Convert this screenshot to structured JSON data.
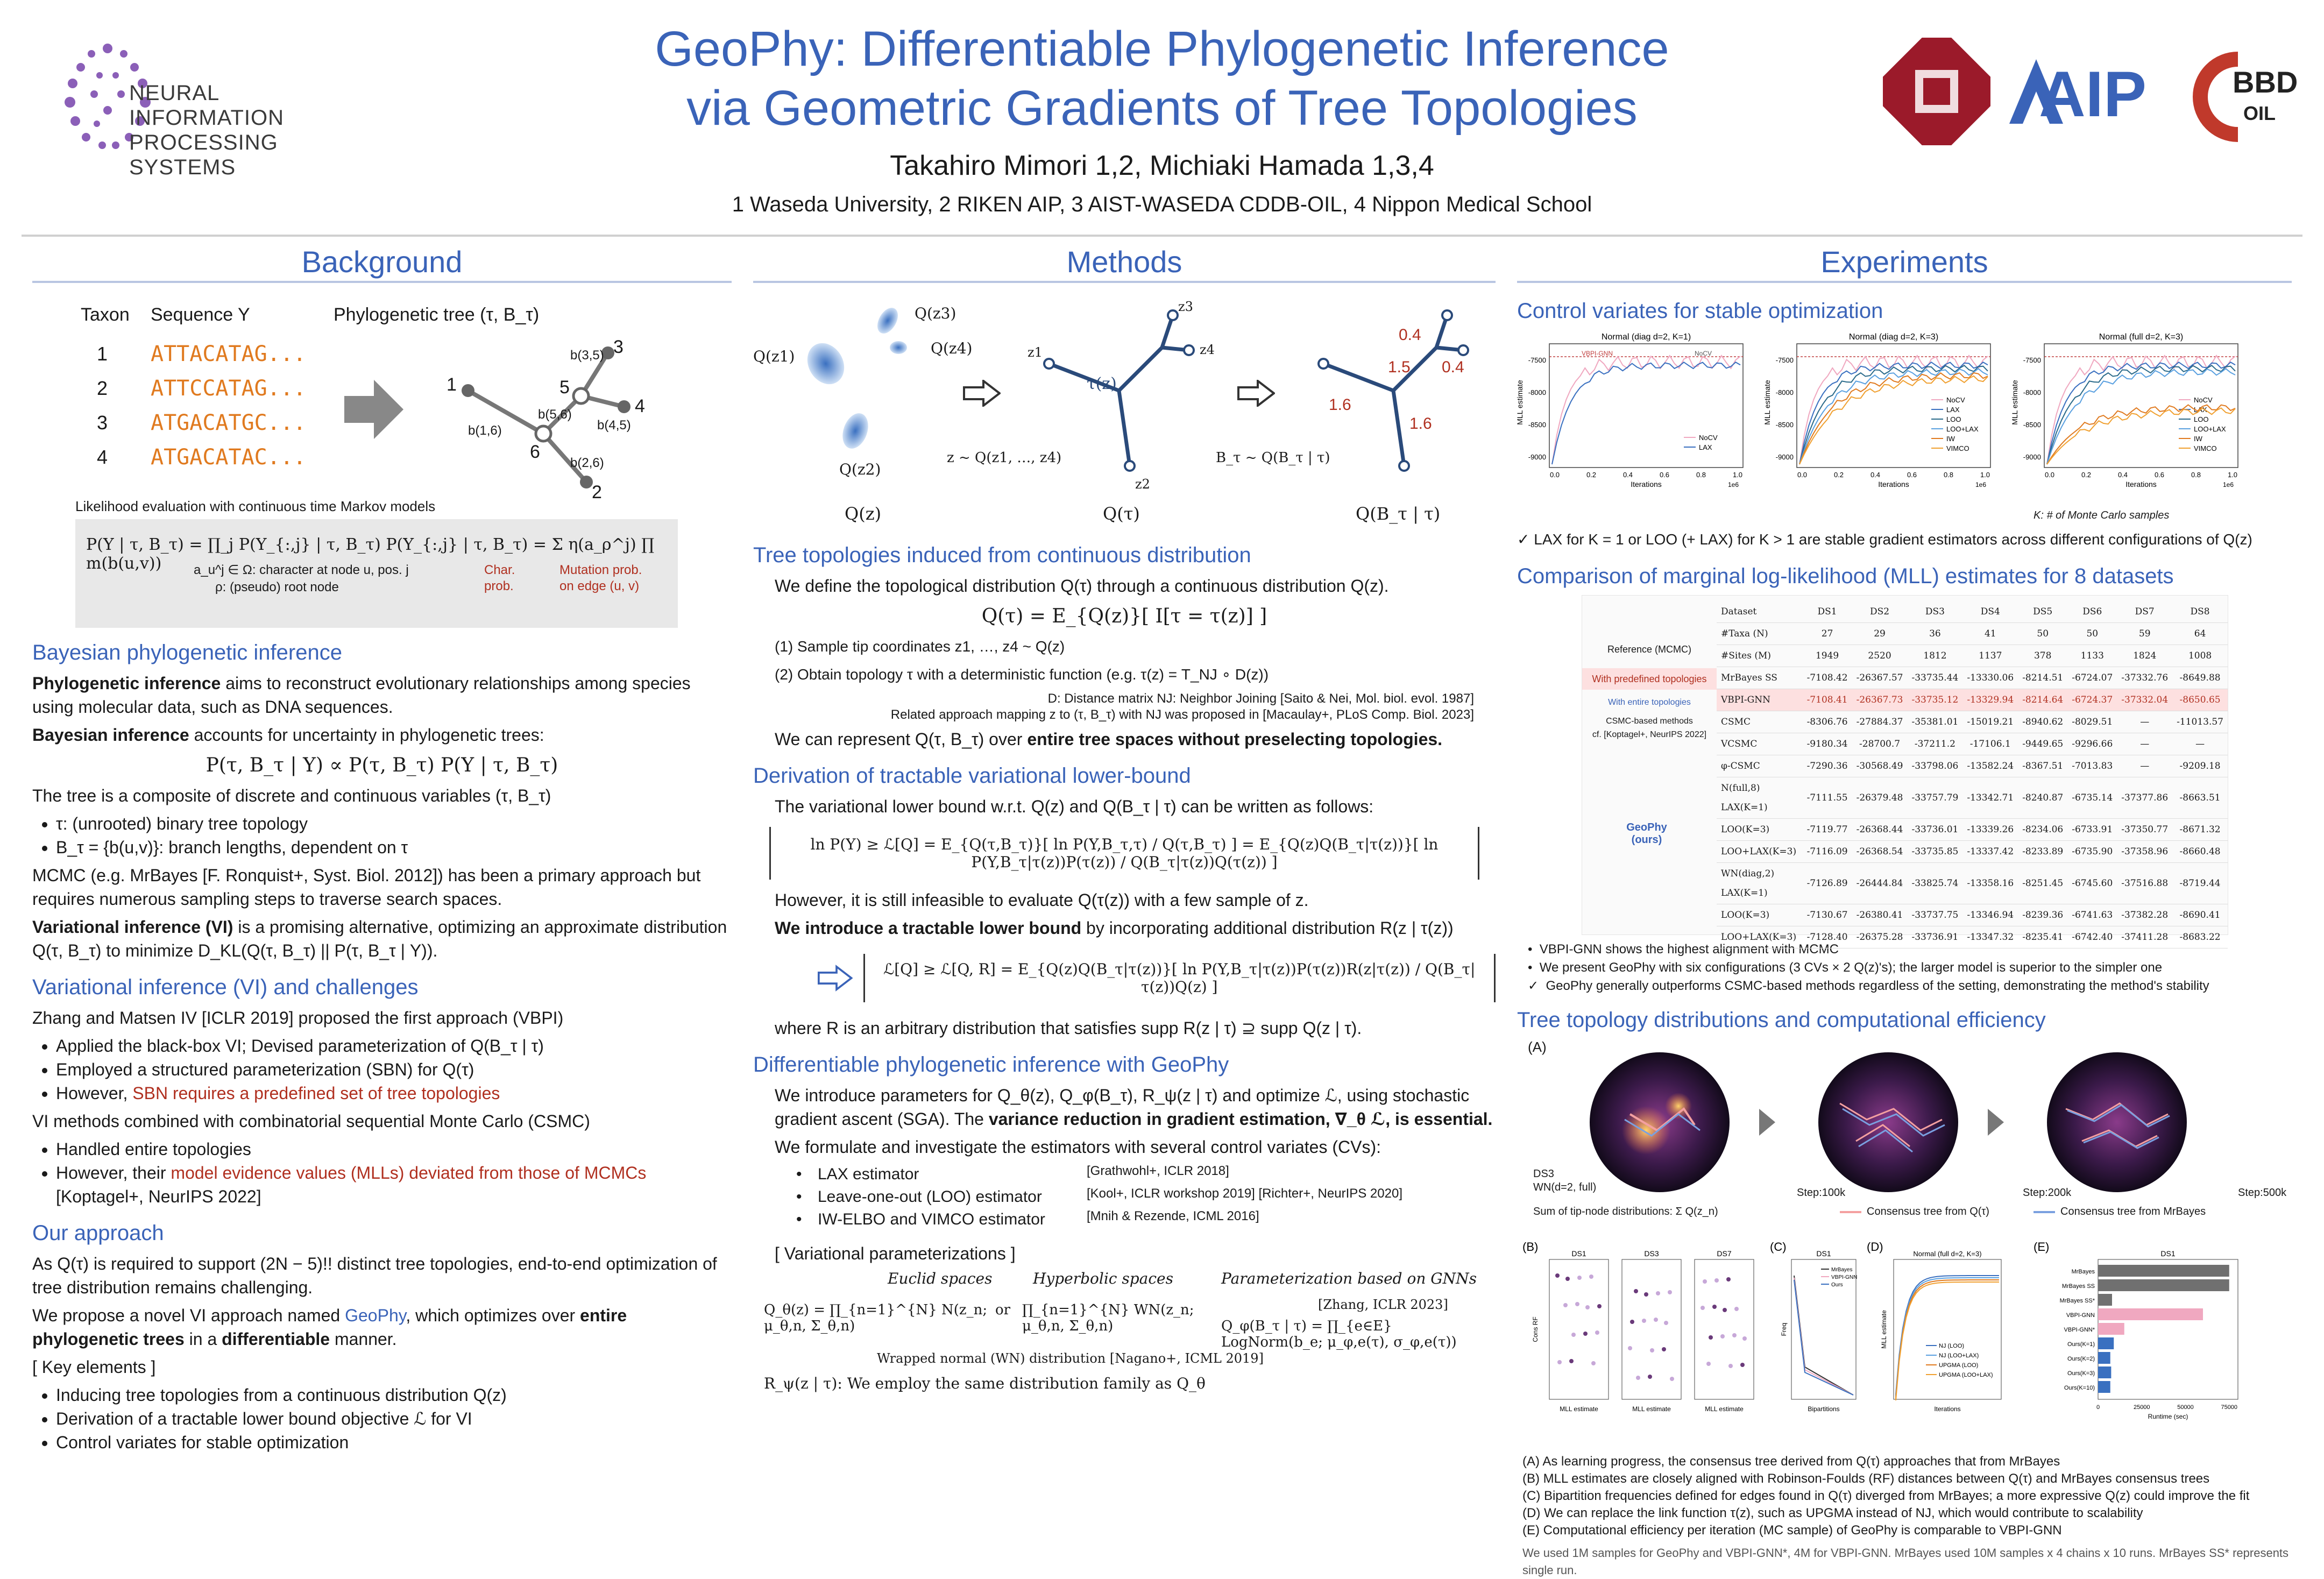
{
  "header": {
    "title_line1": "GeoPhy: Differentiable Phylogenetic Inference",
    "title_line2": "via Geometric Gradients of Tree Topologies",
    "authors": "Takahiro Mimori 1,2, Michiaki Hamada 1,3,4",
    "affiliations": "1 Waseda University, 2 RIKEN AIP, 3 AIST-WASEDA CDDB-OIL, 4 Nippon Medical School",
    "logo_left_line1": "NEURAL INFORMATION",
    "logo_left_line2": "PROCESSING SYSTEMS",
    "logo_aip": "AIP",
    "logo_cbbd": "BBD",
    "logo_cbbd_sub": "OIL"
  },
  "background": {
    "heading": "Background",
    "taxon_label": "Taxon",
    "sequence_label": "Sequence Y",
    "tree_label": "Phylogenetic tree (τ, B_τ)",
    "taxa": [
      "1",
      "2",
      "3",
      "4"
    ],
    "sequences": [
      "ATTACATAG...",
      "ATTCCATAG...",
      "ATGACATGC...",
      "ATGACATAC..."
    ],
    "tree_nodes": [
      "1",
      "2",
      "3",
      "4",
      "5",
      "6"
    ],
    "branch_labels": [
      "b(3,5)",
      "b(5,6)",
      "b(4,5)",
      "b(1,6)",
      "b(2,6)"
    ],
    "likelihood_caption": "Likelihood evaluation with continuous time Markov models",
    "likelihood_eq": "P(Y | τ, B_τ) = ∏_j P(Y_{:,j} | τ, B_τ)     P(Y_{:,j} | τ, B_τ) = Σ η(a_ρ^j) ∏ m(b(u,v))",
    "char_note": "a_u^j ∈ Ω: character at node u, pos. j",
    "root_note": "ρ: (pseudo) root node",
    "char_prob": "Char. prob.",
    "mut_prob": "Mutation prob. on edge (u, v)",
    "bayes_heading": "Bayesian phylogenetic inference",
    "bayes_p1_bold": "Phylogenetic inference",
    "bayes_p1": " aims to reconstruct evolutionary relationships among species using molecular data, such as DNA sequences.",
    "bayes_p2_bold": "Bayesian inference",
    "bayes_p2": " accounts for uncertainty in phylogenetic trees:",
    "bayes_eq": "P(τ, B_τ | Y) ∝ P(τ, B_τ) P(Y | τ, B_τ)",
    "bayes_p3": "The tree is a composite of discrete and continuous variables (τ, B_τ)",
    "bayes_items": [
      "τ: (unrooted) binary tree topology",
      "B_τ = {b(u,v)}: branch lengths, dependent on τ"
    ],
    "mcmc_p": "MCMC (e.g. MrBayes [F. Ronquist+, Syst. Biol. 2012]) has been a primary approach but requires numerous sampling steps to traverse search spaces.",
    "vi_bold": "Variational inference (VI)",
    "vi_p": " is a promising alternative, optimizing an approximate distribution Q(τ, B_τ) to minimize D_KL(Q(τ, B_τ) || P(τ, B_τ | Y)).",
    "vic_heading": "Variational inference (VI) and challenges",
    "vic_p1": "Zhang and Matsen IV [ICLR 2019] proposed the first approach (VBPI)",
    "vic_items1": [
      "Applied the black-box VI; Devised parameterization of Q(B_τ | τ)",
      "Employed a structured parameterization (SBN) for Q(τ)"
    ],
    "vic_item1_last_pre": "However, ",
    "vic_item1_last_red": "SBN requires a predefined set of tree topologies",
    "vic_p2": "VI methods combined with combinatorial sequential Monte Carlo (CSMC)",
    "vic_items2": [
      "Handled entire topologies"
    ],
    "vic_item2_last_pre": "However, their ",
    "vic_item2_last_red": "model evidence values (MLLs) deviated from those of MCMCs",
    "vic_item2_cite": "[Koptagel+, NeurIPS 2022]",
    "oa_heading": "Our approach",
    "oa_p1": "As Q(τ) is required to support (2N − 5)!! distinct tree topologies, end-to-end optimization of tree distribution remains challenging.",
    "oa_p2_pre": "We propose a novel VI approach named ",
    "oa_p2_name": "GeoPhy",
    "oa_p2_mid": ", which optimizes over ",
    "oa_p2_bold1": "entire phylogenetic trees",
    "oa_p2_mid2": " in a ",
    "oa_p2_bold2": "differentiable",
    "oa_p2_end": " manner.",
    "key_label": "[ Key elements ]",
    "key_items": [
      "Inducing tree topologies from a continuous distribution Q(z)",
      "Derivation of a tractable lower bound objective ℒ for VI",
      "Control variates for stable optimization"
    ]
  },
  "methods": {
    "heading": "Methods",
    "q_labels": [
      "Q(z1)",
      "Q(z2)",
      "Q(z3)",
      "Q(z4)"
    ],
    "sample_label": "z ~ Q(z1, …, z4)",
    "bt_label": "B_τ ~ Q(B_τ | τ)",
    "tau_label": "τ(z)",
    "z_labels": [
      "z1",
      "z2",
      "z3",
      "z4"
    ],
    "branch_vals": [
      "0.4",
      "0.4",
      "1.5",
      "1.6",
      "1.6"
    ],
    "fig_captions": [
      "Q(z)",
      "Q(τ)",
      "Q(B_τ | τ)"
    ],
    "s1_heading": "Tree topologies induced from continuous distribution",
    "s1_p1": "We define the topological distribution Q(τ) through a continuous distribution Q(z).",
    "s1_eq": "Q(τ) = E_{Q(z)}[ I[τ = τ(z)] ]",
    "s1_steps": [
      "(1)     Sample tip coordinates z1, …, z4 ~ Q(z)",
      "(2)     Obtain topology τ with a deterministic function (e.g. τ(z) = T_NJ ∘ D(z))"
    ],
    "s1_note1": "D: Distance matrix     NJ: Neighbor Joining [Saito & Nei, Mol. biol. evol. 1987]",
    "s1_note2": "Related approach mapping z to (τ, B_τ) with NJ was proposed in [Macaulay+, PLoS Comp. Biol. 2023]",
    "s1_p2_pre": "We can represent Q(τ, B_τ) over ",
    "s1_p2_bold": "entire tree spaces without preselecting topologies.",
    "s2_heading": "Derivation of tractable variational lower-bound",
    "s2_p1": "The variational lower bound w.r.t. Q(z) and Q(B_τ | τ) can be written as follows:",
    "s2_eq1": "ln P(Y) ≥ ℒ[Q] = E_{Q(τ,B_τ)}[ ln P(Y,B_τ,τ) / Q(τ,B_τ) ] = E_{Q(z)Q(B_τ|τ(z))}[ ln P(Y,B_τ|τ(z))P(τ(z)) / Q(B_τ|τ(z))Q(τ(z)) ]",
    "s2_p2": "However, it is still infeasible to evaluate Q(τ(z)) with a few sample of z.",
    "s2_p3_bold": "We introduce a tractable lower bound",
    "s2_p3": " by incorporating additional distribution R(z | τ(z))",
    "s2_eq2": "ℒ[Q] ≥ ℒ[Q, R] = E_{Q(z)Q(B_τ|τ(z))}[ ln P(Y,B_τ|τ(z))P(τ(z))R(z|τ(z)) / Q(B_τ|τ(z))Q(z) ]",
    "s2_p4": "where R is an arbitrary distribution that satisfies supp R(z | τ) ⊇ supp Q(z | τ).",
    "s3_heading": "Differentiable phylogenetic inference with GeoPhy",
    "s3_p1_pre": "We introduce parameters for Q_θ(z), Q_φ(B_τ), R_ψ(z | τ) and optimize ℒ, using stochastic gradient ascent (SGA). The ",
    "s3_p1_bold": "variance reduction in gradient estimation, ∇_θ ℒ, is essential.",
    "s3_p2": "We formulate and investigate the estimators with several control variates (CVs):",
    "cv_items": [
      {
        "name": "LAX estimator",
        "cite": "[Grathwohl+, ICLR 2018]"
      },
      {
        "name": "Leave-one-out (LOO) estimator",
        "cite": "[Kool+, ICLR workshop 2019] [Richter+, NeurIPS 2020]"
      },
      {
        "name": "IW-ELBO and VIMCO estimator",
        "cite": "[Mnih & Rezende, ICML 2016]"
      }
    ],
    "vp_label": "[ Variational parameterizations ]",
    "euclid_label": "Euclid spaces",
    "hyper_label": "Hyperbolic spaces",
    "gnn_label": "Parameterization based on GNNs",
    "gnn_cite": "[Zhang, ICLR 2023]",
    "eq_euclid": "Q_θ(z) = ∏_{n=1}^{N} N(z_n; μ_θ,n, Σ_θ,n)",
    "eq_or": "or",
    "eq_hyper": "∏_{n=1}^{N} WN(z_n; μ_θ,n, Σ_θ,n)",
    "eq_gnn": "Q_φ(B_τ | τ) = ∏_{e∈E} LogNorm(b_e; μ_φ,e(τ), σ_φ,e(τ))",
    "wn_note": "Wrapped normal (WN) distribution [Nagano+, ICML 2019]",
    "r_note": "R_ψ(z | τ): We employ the same distribution family as Q_θ"
  },
  "experiments": {
    "heading": "Experiments",
    "cv_heading": "Control variates for stable optimization",
    "cv_plots": [
      {
        "title": "Normal (diag d=2, K=1)",
        "legend": [
          "NoCV",
          "LAX"
        ],
        "annot": [
          "VBPI-GNN",
          "NoCV"
        ]
      },
      {
        "title": "Normal (diag d=2, K=3)",
        "legend": [
          "NoCV",
          "LAX",
          "LOO",
          "LOO+LAX",
          "IW",
          "VIMCO"
        ],
        "annot": []
      },
      {
        "title": "Normal (full d=2, K=3)",
        "legend": [
          "NoCV",
          "LAX",
          "LOO",
          "LOO+LAX",
          "IW",
          "VIMCO"
        ],
        "annot": []
      }
    ],
    "cv_yticks": [
      "-7500",
      "-8000",
      "-8500",
      "-9000"
    ],
    "cv_xticks": [
      "0.0",
      "0.2",
      "0.4",
      "0.6",
      "0.8",
      "1.0"
    ],
    "cv_xlabel": "Iterations",
    "cv_xunit": "1e6",
    "cv_ylabel": "MLL estimate",
    "cv_knote": "K: # of Monte Carlo samples",
    "cv_check": "LAX for K = 1 or LOO (+ LAX) for K > 1 are stable gradient estimators across different configurations of Q(z)",
    "mll_heading": "Comparison of marginal log-likelihood (MLL) estimates for 8 datasets",
    "mll_datasets": [
      "DS1",
      "DS2",
      "DS3",
      "DS4",
      "DS5",
      "DS6",
      "DS7",
      "DS8"
    ],
    "mll_taxa": [
      "27",
      "29",
      "36",
      "41",
      "50",
      "50",
      "59",
      "64"
    ],
    "mll_sites": [
      "1949",
      "2520",
      "1812",
      "1137",
      "378",
      "1133",
      "1824",
      "1008"
    ],
    "mll_row_labels": [
      "Dataset",
      "#Taxa (N)",
      "#Sites (M)"
    ],
    "mll_ref_label": "Reference (MCMC)",
    "mll_mrbayes": {
      "name": "MrBayes SS",
      "vals": [
        "-7108.42",
        "-26367.57",
        "-33735.44",
        "-13330.06",
        "-8214.51",
        "-6724.07",
        "-37332.76",
        "-8649.88"
      ]
    },
    "mll_predef_label": "With predefined topologies",
    "mll_vbpi": {
      "name": "VBPI-GNN",
      "vals": [
        "-7108.41",
        "-26367.73",
        "-33735.12",
        "-13329.94",
        "-8214.64",
        "-6724.37",
        "-37332.04",
        "-8650.65"
      ]
    },
    "mll_entire_label": "With entire topologies",
    "mll_csmc_label": "CSMC-based methods",
    "mll_csmc_cite": "cf. [Koptagel+, NeurIPS 2022]",
    "mll_csmc_rows": [
      {
        "name": "CSMC",
        "vals": [
          "-8306.76",
          "-27884.37",
          "-35381.01",
          "-15019.21",
          "-8940.62",
          "-8029.51",
          "—",
          "-11013.57"
        ]
      },
      {
        "name": "VCSMC",
        "vals": [
          "-9180.34",
          "-28700.7",
          "-37211.2",
          "-17106.1",
          "-9449.65",
          "-9296.66",
          "—",
          "—"
        ]
      },
      {
        "name": "φ-CSMC",
        "vals": [
          "-7290.36",
          "-30568.49",
          "-33798.06",
          "-13582.24",
          "-8367.51",
          "-7013.83",
          "—",
          "-9209.18"
        ]
      }
    ],
    "mll_geophy_label": "GeoPhy (ours)",
    "mll_geophy_rows": [
      {
        "name": "N(full,8) LAX(K=1)",
        "vals": [
          "-7111.55",
          "-26379.48",
          "-33757.79",
          "-13342.71",
          "-8240.87",
          "-6735.14",
          "-37377.86",
          "-8663.51"
        ]
      },
      {
        "name": "LOO(K=3)",
        "vals": [
          "-7119.77",
          "-26368.44",
          "-33736.01",
          "-13339.26",
          "-8234.06",
          "-6733.91",
          "-37350.77",
          "-8671.32"
        ]
      },
      {
        "name": "LOO+LAX(K=3)",
        "vals": [
          "-7116.09",
          "-26368.54",
          "-33735.85",
          "-13337.42",
          "-8233.89",
          "-6735.90",
          "-37358.96",
          "-8660.48"
        ]
      },
      {
        "name": "WN(diag,2) LAX(K=1)",
        "vals": [
          "-7126.89",
          "-26444.84",
          "-33825.74",
          "-13358.16",
          "-8251.45",
          "-6745.60",
          "-37516.88",
          "-8719.44"
        ]
      },
      {
        "name": "LOO(K=3)",
        "vals": [
          "-7130.67",
          "-26380.41",
          "-33737.75",
          "-13346.94",
          "-8239.36",
          "-6741.63",
          "-37382.28",
          "-8690.41"
        ]
      },
      {
        "name": "LOO+LAX(K=3)",
        "vals": [
          "-7128.40",
          "-26375.28",
          "-33736.91",
          "-13347.32",
          "-8235.41",
          "-6742.40",
          "-37411.28",
          "-8683.22"
        ]
      }
    ],
    "mll_bullets": [
      {
        "mark": "•",
        "text": "VBPI-GNN shows the highest alignment with MCMC"
      },
      {
        "mark": "•",
        "text": "We present GeoPhy with six configurations (3 CVs × 2 Q(z)'s); the larger model is superior to the simpler one"
      },
      {
        "mark": "✓",
        "text": "GeoPhy generally outperforms CSMC-based methods regardless of the setting, demonstrating the method's stability"
      }
    ],
    "td_heading": "Tree topology distributions and computational efficiency",
    "panel_A": "(A)",
    "steps": [
      "Step:100k",
      "Step:200k",
      "Step:500k"
    ],
    "ds3_label": "DS3",
    "ds3_config": "WN(d=2, full)",
    "legend_sum": "Sum of tip-node distributions: Σ Q(z_n)",
    "legend_q": "Consensus tree from Q(τ)",
    "legend_mb": "Consensus tree from MrBayes",
    "panel_B": "(B)",
    "b_titles": [
      "DS1",
      "DS3",
      "DS7"
    ],
    "b_ylabel": "Cons RF",
    "b_xlabel": "MLL estimate",
    "panel_C": "(C)",
    "c_title": "DS1",
    "c_legend": [
      "MrBayes",
      "VBPI-GNN",
      "Ours"
    ],
    "c_xlabel": "Bipartitions",
    "c_ylabel": "Freq",
    "panel_D": "(D)",
    "d_title": "Normal (full d=2, K=3)",
    "d_legend": [
      "NJ (LOO)",
      "NJ (LOO+LAX)",
      "UPGMA (LOO)",
      "UPGMA (LOO+LAX)"
    ],
    "d_xlabel": "Iterations",
    "d_ylabel": "MLL estimate",
    "panel_E": "(E)",
    "e_title": "DS1",
    "e_bars": [
      {
        "name": "MrBayes",
        "value": 75000,
        "color": "#707070"
      },
      {
        "name": "MrBayes SS",
        "value": 75000,
        "color": "#707070"
      },
      {
        "name": "MrBayes SS*",
        "value": 8000,
        "color": "#707070"
      },
      {
        "name": "VBPI-GNN",
        "value": 60000,
        "color": "#f0a8c0"
      },
      {
        "name": "VBPI-GNN*",
        "value": 15000,
        "color": "#f0a8c0"
      },
      {
        "name": "Ours(K=1)",
        "value": 9000,
        "color": "#3a70c0"
      },
      {
        "name": "Ours(K=2)",
        "value": 7000,
        "color": "#3a70c0"
      },
      {
        "name": "Ours(K=3)",
        "value": 7500,
        "color": "#3a70c0"
      },
      {
        "name": "Ours(K=10)",
        "value": 7000,
        "color": "#3a70c0"
      }
    ],
    "e_xlabel": "Runtime (sec)",
    "e_xticks": [
      "0",
      "25000",
      "50000",
      "75000"
    ],
    "captions": [
      "(A)   As learning progress, the consensus tree derived from Q(τ) approaches that from MrBayes",
      "(B)   MLL estimates are closely aligned with Robinson-Foulds (RF) distances between Q(τ) and MrBayes consensus trees",
      "(C)   Bipartition frequencies defined for edges found in Q(τ) diverged from MrBayes; a more expressive Q(z) could improve the fit",
      "(D)   We can replace the link function τ(z), such as UPGMA instead of NJ, which would contribute to scalability",
      "(E)   Computational efficiency per iteration (MC sample) of GeoPhy is comparable to VBPI-GNN"
    ],
    "footnote": "We used 1M samples for GeoPhy and VBPI-GNN*, 4M for VBPI-GNN. MrBayes used 10M samples x 4 chains x 10 runs. MrBayes SS* represents single run."
  },
  "colors": {
    "accent": "#3a63b8",
    "red": "#b03020",
    "orange": "#e07a1f"
  }
}
